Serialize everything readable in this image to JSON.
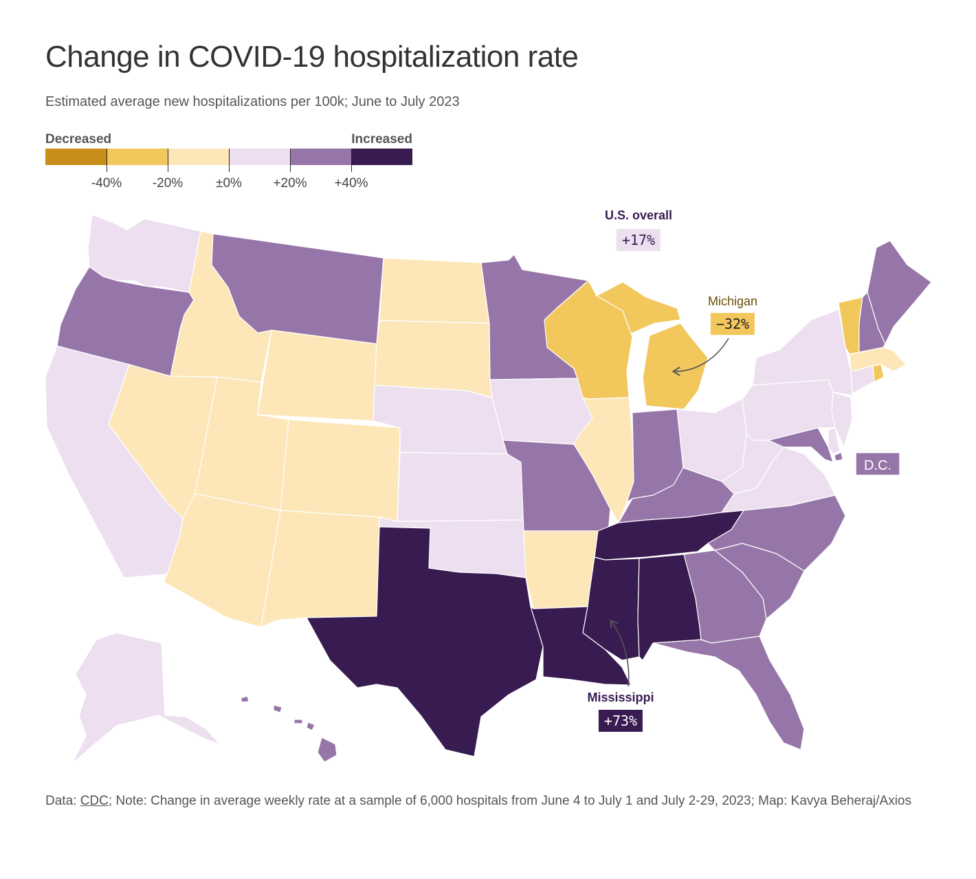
{
  "title": "Change in COVID-19 hospitalization rate",
  "subtitle": "Estimated average new hospitalizations per 100k; June to July 2023",
  "legend": {
    "left_label": "Decreased",
    "right_label": "Increased",
    "bins": [
      "#c98e1a",
      "#f2c75c",
      "#fde7b9",
      "#eddff0",
      "#9676a8",
      "#371b51"
    ],
    "ticks": [
      "-40%",
      "-20%",
      "±0%",
      "+20%",
      "+40%"
    ]
  },
  "colors": {
    "dec_strong": "#c98e1a",
    "dec": "#f2c75c",
    "dec_light": "#fde7b9",
    "inc_light": "#eddff0",
    "inc": "#9676a8",
    "inc_strong": "#371b51"
  },
  "states": [
    {
      "name": "Washington",
      "class": "inc_light"
    },
    {
      "name": "Oregon",
      "class": "inc"
    },
    {
      "name": "California",
      "class": "inc_light"
    },
    {
      "name": "Idaho",
      "class": "dec_light"
    },
    {
      "name": "Nevada",
      "class": "dec_light"
    },
    {
      "name": "Montana",
      "class": "inc"
    },
    {
      "name": "Wyoming",
      "class": "dec_light"
    },
    {
      "name": "Utah",
      "class": "dec_light"
    },
    {
      "name": "Arizona",
      "class": "dec_light"
    },
    {
      "name": "Colorado",
      "class": "dec_light"
    },
    {
      "name": "New Mexico",
      "class": "dec_light"
    },
    {
      "name": "North Dakota",
      "class": "dec_light"
    },
    {
      "name": "South Dakota",
      "class": "dec_light"
    },
    {
      "name": "Nebraska",
      "class": "inc_light"
    },
    {
      "name": "Kansas",
      "class": "inc_light"
    },
    {
      "name": "Oklahoma",
      "class": "inc_light"
    },
    {
      "name": "Texas",
      "class": "inc_strong"
    },
    {
      "name": "Minnesota",
      "class": "inc"
    },
    {
      "name": "Iowa",
      "class": "inc_light"
    },
    {
      "name": "Missouri",
      "class": "inc"
    },
    {
      "name": "Arkansas",
      "class": "dec_light"
    },
    {
      "name": "Louisiana",
      "class": "inc_strong"
    },
    {
      "name": "Wisconsin",
      "class": "dec"
    },
    {
      "name": "Illinois",
      "class": "dec_light"
    },
    {
      "name": "Michigan",
      "class": "dec"
    },
    {
      "name": "Indiana",
      "class": "inc"
    },
    {
      "name": "Ohio",
      "class": "inc_light"
    },
    {
      "name": "Kentucky",
      "class": "inc"
    },
    {
      "name": "Tennessee",
      "class": "inc_strong"
    },
    {
      "name": "Mississippi",
      "class": "inc_strong"
    },
    {
      "name": "Alabama",
      "class": "inc_strong"
    },
    {
      "name": "Georgia",
      "class": "inc"
    },
    {
      "name": "Florida",
      "class": "inc"
    },
    {
      "name": "South Carolina",
      "class": "inc"
    },
    {
      "name": "North Carolina",
      "class": "inc"
    },
    {
      "name": "Virginia",
      "class": "inc_light"
    },
    {
      "name": "West Virginia",
      "class": "inc_light"
    },
    {
      "name": "Maryland",
      "class": "inc"
    },
    {
      "name": "Delaware",
      "class": "inc_light"
    },
    {
      "name": "New Jersey",
      "class": "inc_light"
    },
    {
      "name": "Pennsylvania",
      "class": "inc_light"
    },
    {
      "name": "New York",
      "class": "inc_light"
    },
    {
      "name": "Connecticut",
      "class": "inc_light"
    },
    {
      "name": "Rhode Island",
      "class": "dec"
    },
    {
      "name": "Massachusetts",
      "class": "dec_light"
    },
    {
      "name": "Vermont",
      "class": "dec"
    },
    {
      "name": "New Hampshire",
      "class": "inc"
    },
    {
      "name": "Maine",
      "class": "inc"
    },
    {
      "name": "Alaska",
      "class": "inc_light"
    },
    {
      "name": "Hawaii",
      "class": "inc"
    }
  ],
  "callouts": {
    "us": {
      "title": "U.S. overall",
      "value": "+17%"
    },
    "michigan": {
      "title": "Michigan",
      "value": "−32%"
    },
    "dc": {
      "title": "D.C."
    },
    "mississippi": {
      "title": "Mississippi",
      "value": "+73%"
    }
  },
  "footer": {
    "data_prefix": "Data: ",
    "source": "CDC",
    "note": "; Note: Change in average weekly rate at a sample of 6,000 hospitals from June 4 to July 1 and July 2-29, 2023; Map: Kavya Beheraj/Axios"
  }
}
